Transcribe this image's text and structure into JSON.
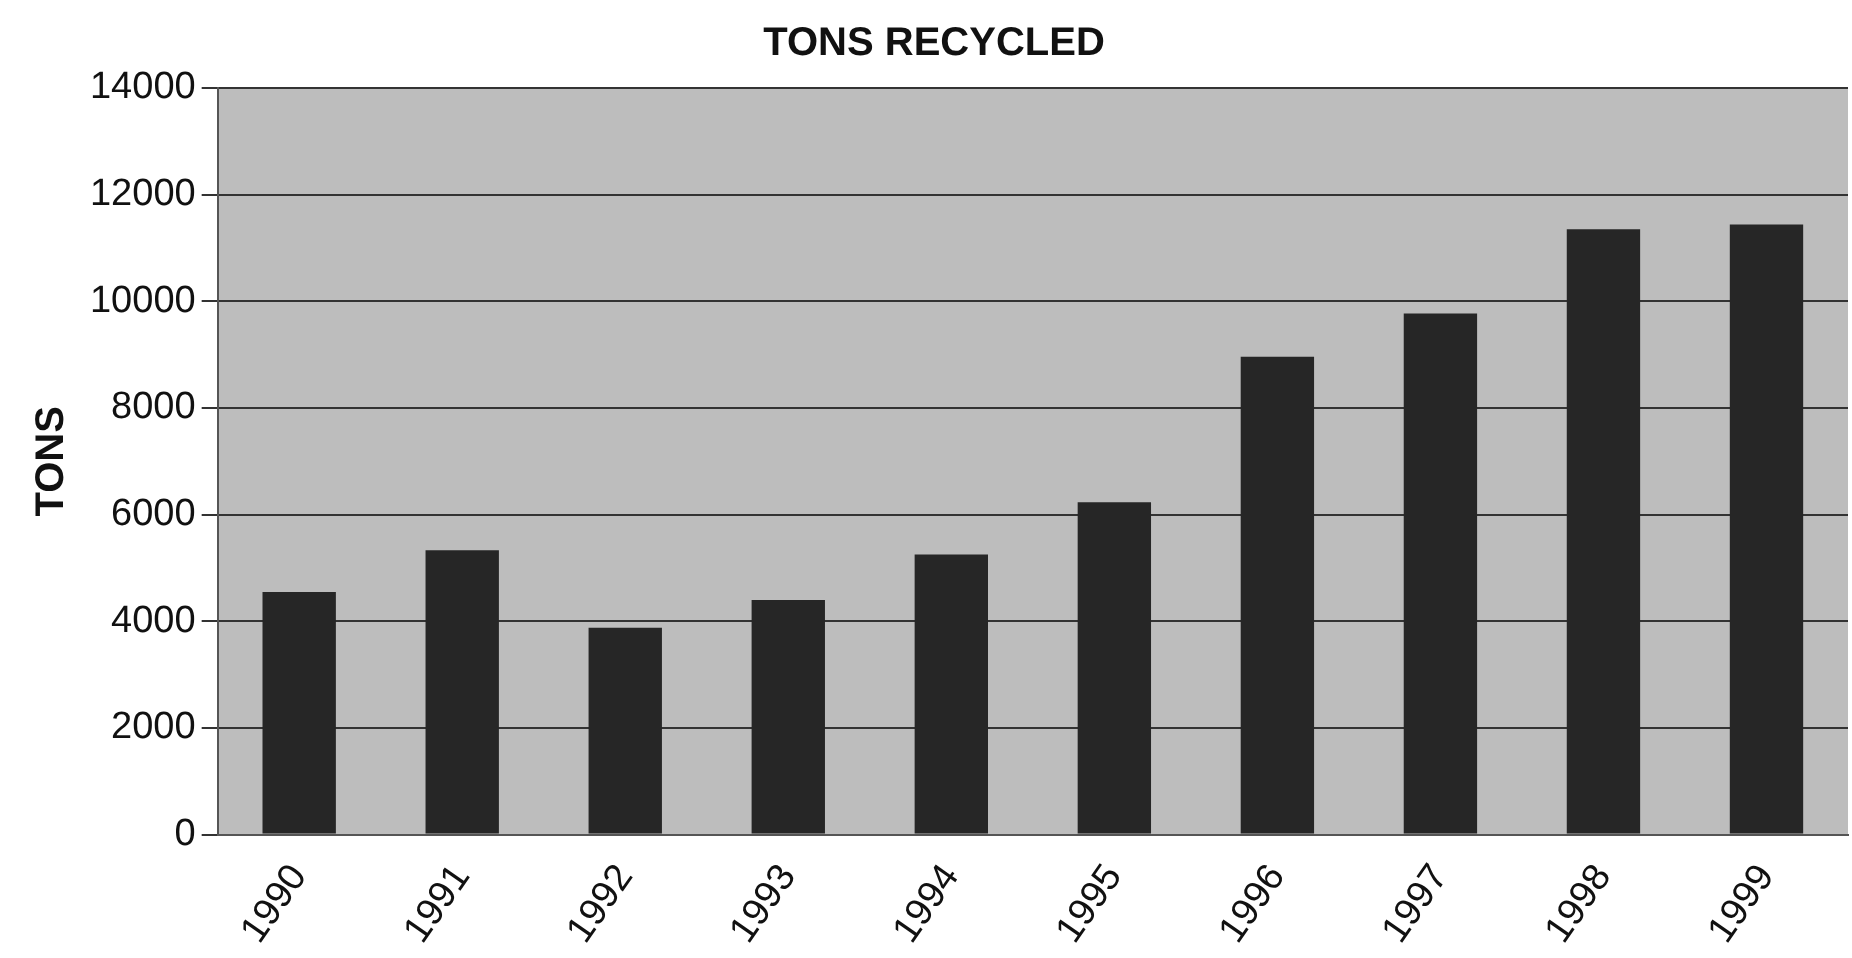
{
  "chart_data": {
    "type": "bar",
    "title": "TONS RECYCLED",
    "ylabel": "TONS",
    "categories": [
      "1990",
      "1991",
      "1992",
      "1993",
      "1994",
      "1995",
      "1996",
      "1997",
      "1998",
      "1999"
    ],
    "values": [
      4550,
      5330,
      3880,
      4400,
      5250,
      6230,
      8960,
      9770,
      11350,
      11440
    ],
    "color": "#262626",
    "ylim": [
      0,
      14000
    ],
    "yticks": [
      0,
      2000,
      4000,
      6000,
      8000,
      10000,
      12000,
      14000
    ],
    "grid": "y"
  }
}
